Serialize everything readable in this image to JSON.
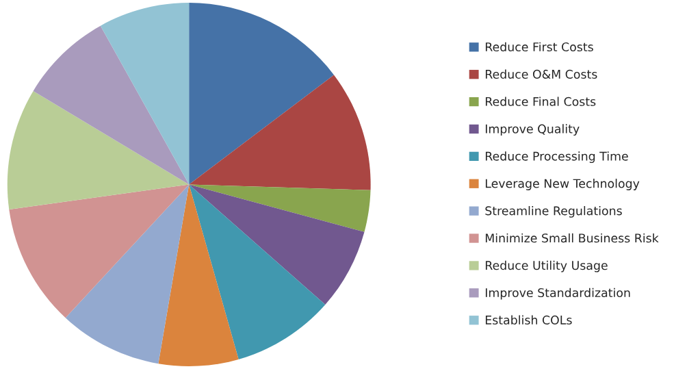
{
  "chart_data": {
    "type": "pie",
    "categories": [
      "Reduce First Costs",
      "Reduce O&M Costs",
      "Reduce Final Costs",
      "Improve Quality",
      "Reduce Processing Time",
      "Leverage New Technology",
      "Streamline Regulations",
      "Minimize Small Business Risk",
      "Reduce Utility Usage",
      "Improve Standardization",
      "Establish COLs"
    ],
    "values": [
      14.7,
      10.8,
      3.7,
      7.3,
      9.1,
      7.1,
      9.2,
      10.9,
      10.8,
      8.3,
      8.1
    ],
    "colors": [
      "#4572a7",
      "#aa4643",
      "#89a54e",
      "#71588f",
      "#4198af",
      "#db843d",
      "#93a9cf",
      "#d19392",
      "#b9cd96",
      "#a99bbd",
      "#92c3d4"
    ],
    "legend": "right"
  }
}
